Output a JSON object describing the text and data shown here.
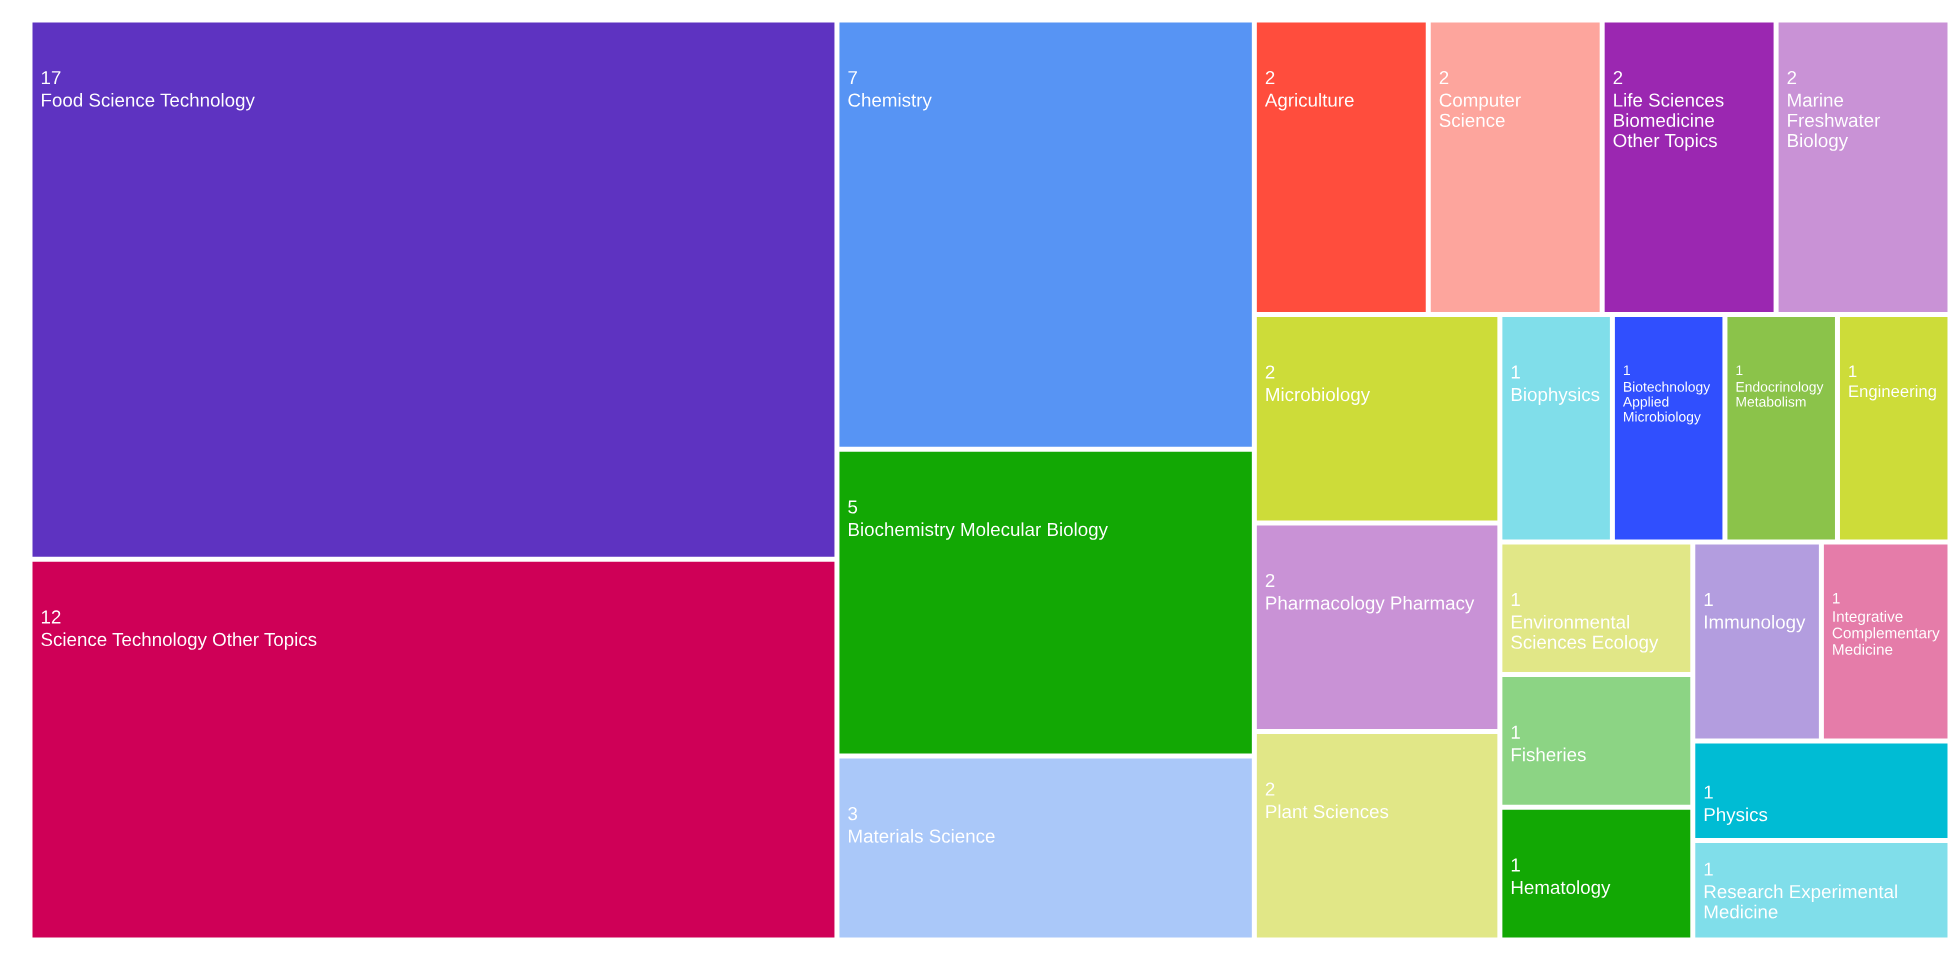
{
  "chart_data": {
    "type": "other",
    "categories": [
      "Food Science Technology",
      "Science Technology Other Topics",
      "Chemistry",
      "Biochemistry Molecular Biology",
      "Materials Science",
      "Agriculture",
      "Computer Science",
      "Life Sciences Biomedicine Other Topics",
      "Marine Freshwater Biology",
      "Microbiology",
      "Pharmacology Pharmacy",
      "Plant Sciences",
      "Biophysics",
      "Biotechnology Applied Microbiology",
      "Endocrinology Metabolism",
      "Engineering",
      "Environmental Sciences Ecology",
      "Fisheries",
      "Hematology",
      "Immunology",
      "Integrative Complementary Medicine",
      "Physics",
      "Research Experimental Medicine"
    ],
    "values": [
      17,
      12,
      7,
      5,
      3,
      2,
      2,
      2,
      2,
      2,
      2,
      2,
      1,
      1,
      1,
      1,
      1,
      1,
      1,
      1,
      1,
      1,
      1
    ],
    "colors": [
      "#5e33c1",
      "#cf0057",
      "#5794f4",
      "#12a804",
      "#aac8f9",
      "#ff4d3d",
      "#fda59d",
      "#9b27b1",
      "#c992d6",
      "#cddc39",
      "#c992d6",
      "#e1e787",
      "#80deea",
      "#304ffe",
      "#8bc34a",
      "#cddc39",
      "#e1e787",
      "#8cd484",
      "#12a804",
      "#b39ddf",
      "#e57ca9",
      "#00bcd4",
      "#80deea"
    ],
    "data_labels": true
  }
}
